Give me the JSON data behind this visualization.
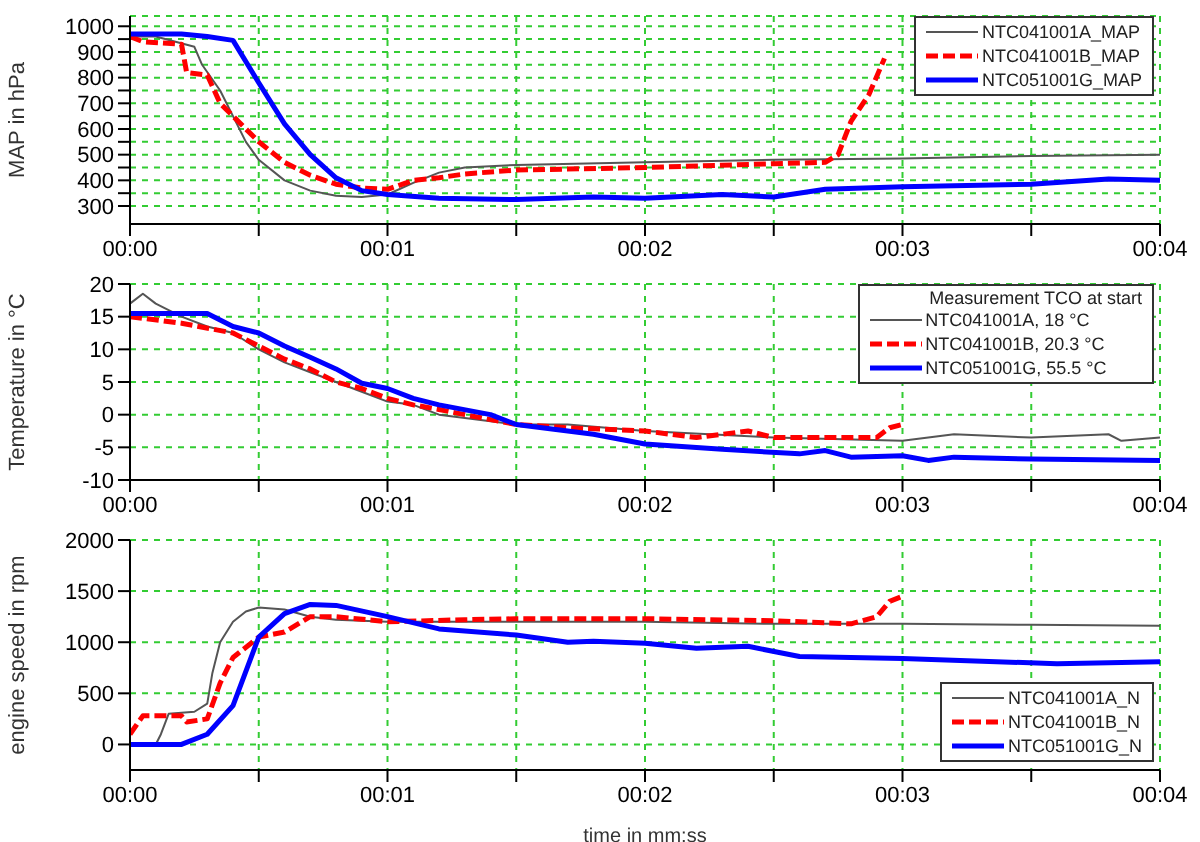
{
  "chart_data": [
    {
      "type": "line",
      "ylabel": "MAP in hPa",
      "xlim": [
        0,
        4
      ],
      "xticks": [
        {
          "value": 0,
          "label": "00:00"
        },
        {
          "value": 0.5,
          "label": null
        },
        {
          "value": 1,
          "label": "00:01"
        },
        {
          "value": 1.5,
          "label": null
        },
        {
          "value": 2,
          "label": "00:02"
        },
        {
          "value": 2.5,
          "label": null
        },
        {
          "value": 3,
          "label": "00:03"
        },
        {
          "value": 3.5,
          "label": null
        },
        {
          "value": 4,
          "label": "00:04"
        }
      ],
      "ylim": [
        230,
        1040
      ],
      "yticks": [
        300,
        {
          "value": 350,
          "label": null
        },
        400,
        {
          "value": 450,
          "label": null
        },
        500,
        {
          "value": 550,
          "label": null
        },
        600,
        {
          "value": 650,
          "label": null
        },
        700,
        {
          "value": 750,
          "label": null
        },
        800,
        {
          "value": 850,
          "label": null
        },
        900,
        {
          "value": 950,
          "label": null
        },
        1000
      ],
      "grid": true,
      "legend": "top right",
      "marker": "none",
      "series": [
        {
          "name": "NTC041001A_MAP",
          "color": "#555555",
          "line_style": "solid",
          "x": [
            0,
            0.1,
            0.25,
            0.28,
            0.35,
            0.4,
            0.45,
            0.5,
            0.6,
            0.7,
            0.8,
            0.9,
            1.0,
            1.1,
            1.2,
            1.3,
            1.5,
            2.0,
            2.5,
            3.0,
            3.5,
            4.0
          ],
          "values": [
            960,
            960,
            920,
            850,
            750,
            650,
            550,
            480,
            400,
            360,
            340,
            335,
            345,
            390,
            430,
            450,
            460,
            470,
            480,
            485,
            495,
            500
          ]
        },
        {
          "name": "NTC041001B_MAP",
          "color": "#ff0000",
          "line_style": "dashed",
          "x": [
            0,
            0.05,
            0.2,
            0.22,
            0.3,
            0.35,
            0.45,
            0.5,
            0.6,
            0.7,
            0.8,
            0.9,
            1.0,
            1.1,
            1.2,
            1.3,
            1.5,
            2.0,
            2.5,
            2.7,
            2.75,
            2.8,
            2.87,
            2.93
          ],
          "values": [
            960,
            940,
            930,
            820,
            810,
            700,
            600,
            550,
            470,
            420,
            385,
            370,
            365,
            400,
            410,
            425,
            440,
            450,
            465,
            470,
            500,
            630,
            735,
            875
          ]
        },
        {
          "name": "NTC051001G_MAP",
          "color": "#0000ff",
          "line_style": "solid",
          "x": [
            0,
            0.2,
            0.3,
            0.4,
            0.5,
            0.6,
            0.7,
            0.8,
            0.9,
            1.0,
            1.2,
            1.5,
            1.8,
            2.0,
            2.3,
            2.5,
            2.7,
            3.0,
            3.5,
            3.8,
            4.0
          ],
          "values": [
            970,
            970,
            960,
            945,
            780,
            620,
            500,
            410,
            360,
            345,
            330,
            325,
            335,
            330,
            345,
            335,
            365,
            375,
            385,
            405,
            400
          ]
        }
      ]
    },
    {
      "type": "line",
      "ylabel": "Temperature in °C",
      "legend_title": "Measurement  TCO at start",
      "xlim": [
        0,
        4
      ],
      "xticks": [
        {
          "value": 0,
          "label": "00:00"
        },
        {
          "value": 0.5,
          "label": null
        },
        {
          "value": 1,
          "label": "00:01"
        },
        {
          "value": 1.5,
          "label": null
        },
        {
          "value": 2,
          "label": "00:02"
        },
        {
          "value": 2.5,
          "label": null
        },
        {
          "value": 3,
          "label": "00:03"
        },
        {
          "value": 3.5,
          "label": null
        },
        {
          "value": 4,
          "label": "00:04"
        }
      ],
      "ylim": [
        -10,
        20
      ],
      "yticks": [
        -10,
        -5,
        0,
        5,
        10,
        15,
        20
      ],
      "grid": true,
      "legend": "top right",
      "marker": "none",
      "series": [
        {
          "name": "NTC041001A, 18 °C",
          "color": "#555555",
          "line_style": "solid",
          "x": [
            0,
            0.05,
            0.1,
            0.2,
            0.3,
            0.4,
            0.5,
            0.6,
            0.7,
            0.8,
            0.9,
            1.0,
            1.1,
            1.2,
            1.3,
            1.4,
            1.5,
            1.7,
            2.0,
            2.5,
            3.0,
            3.2,
            3.5,
            3.8,
            3.85,
            4.0
          ],
          "values": [
            17,
            18.5,
            17,
            15,
            13.5,
            12.5,
            10,
            8,
            6.5,
            5,
            3.5,
            2,
            1.5,
            0,
            -0.5,
            -1,
            -1.5,
            -1.5,
            -2.5,
            -3.5,
            -4,
            -3,
            -3.5,
            -3,
            -4,
            -3.5
          ]
        },
        {
          "name": "NTC041001B, 20.3 °C",
          "color": "#ff0000",
          "line_style": "dashed",
          "x": [
            0,
            0.2,
            0.4,
            0.5,
            0.6,
            0.7,
            0.8,
            0.9,
            1.0,
            1.1,
            1.2,
            1.3,
            1.5,
            1.7,
            2.0,
            2.2,
            2.4,
            2.5,
            2.7,
            2.9,
            2.95,
            3.0
          ],
          "values": [
            15,
            14,
            12.5,
            10.5,
            8.5,
            7,
            5,
            4,
            2.5,
            1.5,
            0.8,
            0,
            -1.5,
            -2,
            -2.5,
            -3.5,
            -2.5,
            -3.5,
            -3.5,
            -3.5,
            -2,
            -1.5
          ]
        },
        {
          "name": "NTC051001G, 55.5 °C",
          "color": "#0000ff",
          "line_style": "solid",
          "x": [
            0,
            0.1,
            0.3,
            0.4,
            0.5,
            0.6,
            0.7,
            0.8,
            0.9,
            1.0,
            1.1,
            1.2,
            1.4,
            1.5,
            1.8,
            2.0,
            2.3,
            2.6,
            2.7,
            2.8,
            3.0,
            3.1,
            3.2,
            3.5,
            4.0
          ],
          "values": [
            15.5,
            15.5,
            15.5,
            13.5,
            12.5,
            10.5,
            8.8,
            7,
            4.8,
            4,
            2.5,
            1.5,
            0,
            -1.5,
            -3,
            -4.5,
            -5.3,
            -6,
            -5.5,
            -6.5,
            -6.3,
            -7,
            -6.5,
            -6.8,
            -7
          ]
        }
      ]
    },
    {
      "type": "line",
      "xlabel": "time in mm:ss",
      "ylabel": "engine speed in rpm",
      "xlim": [
        0,
        4
      ],
      "xticks": [
        {
          "value": 0,
          "label": "00:00"
        },
        {
          "value": 0.5,
          "label": null
        },
        {
          "value": 1,
          "label": "00:01"
        },
        {
          "value": 1.5,
          "label": null
        },
        {
          "value": 2,
          "label": "00:02"
        },
        {
          "value": 2.5,
          "label": null
        },
        {
          "value": 3,
          "label": "00:03"
        },
        {
          "value": 3.5,
          "label": null
        },
        {
          "value": 4,
          "label": "00:04"
        }
      ],
      "ylim": [
        -250,
        2000
      ],
      "yticks": [
        0,
        500,
        1000,
        1500,
        2000
      ],
      "grid": true,
      "legend": "bottom right",
      "marker": "none",
      "series": [
        {
          "name": "NTC041001A_N",
          "color": "#555555",
          "line_style": "solid",
          "x": [
            0,
            0.1,
            0.12,
            0.15,
            0.25,
            0.3,
            0.32,
            0.35,
            0.4,
            0.45,
            0.5,
            0.6,
            0.7,
            0.8,
            1.0,
            1.5,
            2.0,
            2.5,
            3.0,
            3.5,
            4.0
          ],
          "values": [
            0,
            0,
            100,
            300,
            320,
            400,
            700,
            1000,
            1200,
            1300,
            1340,
            1320,
            1250,
            1220,
            1200,
            1200,
            1200,
            1180,
            1180,
            1170,
            1160
          ]
        },
        {
          "name": "NTC041001B_N",
          "color": "#ff0000",
          "line_style": "dashed",
          "x": [
            0,
            0.05,
            0.2,
            0.22,
            0.3,
            0.35,
            0.4,
            0.5,
            0.6,
            0.7,
            0.8,
            1.0,
            1.3,
            1.5,
            2.0,
            2.5,
            2.8,
            2.9,
            2.95,
            3.0
          ],
          "values": [
            100,
            280,
            280,
            220,
            250,
            600,
            850,
            1050,
            1100,
            1250,
            1250,
            1200,
            1220,
            1230,
            1230,
            1210,
            1180,
            1250,
            1400,
            1450
          ]
        },
        {
          "name": "NTC051001G_N",
          "color": "#0000ff",
          "line_style": "solid",
          "x": [
            0,
            0.2,
            0.3,
            0.4,
            0.5,
            0.6,
            0.7,
            0.8,
            1.0,
            1.2,
            1.5,
            1.7,
            1.8,
            2.0,
            2.2,
            2.4,
            2.6,
            3.0,
            3.6,
            4.0
          ],
          "values": [
            0,
            0,
            100,
            380,
            1050,
            1280,
            1370,
            1360,
            1250,
            1130,
            1070,
            1000,
            1010,
            990,
            940,
            960,
            860,
            840,
            790,
            810
          ]
        }
      ]
    }
  ]
}
